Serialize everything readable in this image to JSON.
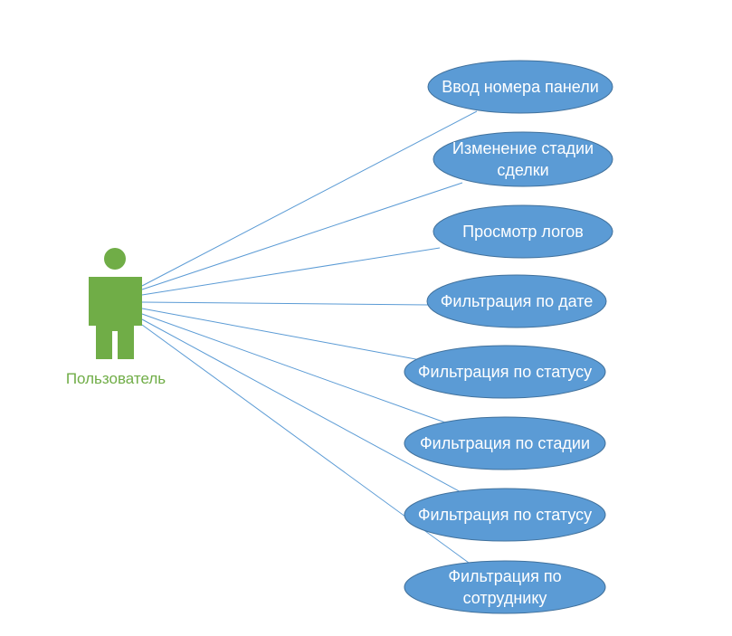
{
  "actor": {
    "name": "Пользователь",
    "icon": "user-actor-icon"
  },
  "use_cases": [
    {
      "id": "uc-1",
      "lines": [
        "Ввод номера панели"
      ]
    },
    {
      "id": "uc-2",
      "lines": [
        "Изменение стадии",
        "сделки"
      ]
    },
    {
      "id": "uc-3",
      "lines": [
        "Просмотр логов"
      ]
    },
    {
      "id": "uc-4",
      "lines": [
        "Фильтрация по дате"
      ]
    },
    {
      "id": "uc-5",
      "lines": [
        "Фильтрация по статусу"
      ]
    },
    {
      "id": "uc-6",
      "lines": [
        "Фильтрация по стадии"
      ]
    },
    {
      "id": "uc-7",
      "lines": [
        "Фильтрация по статусу"
      ]
    },
    {
      "id": "uc-8",
      "lines": [
        "Фильтрация по",
        "сотруднику"
      ]
    }
  ],
  "colors": {
    "actor": "#70ad47",
    "use_case_fill": "#5b9bd5",
    "use_case_stroke": "#41719c",
    "connector": "#5b9bd5",
    "use_case_text": "#ffffff"
  }
}
